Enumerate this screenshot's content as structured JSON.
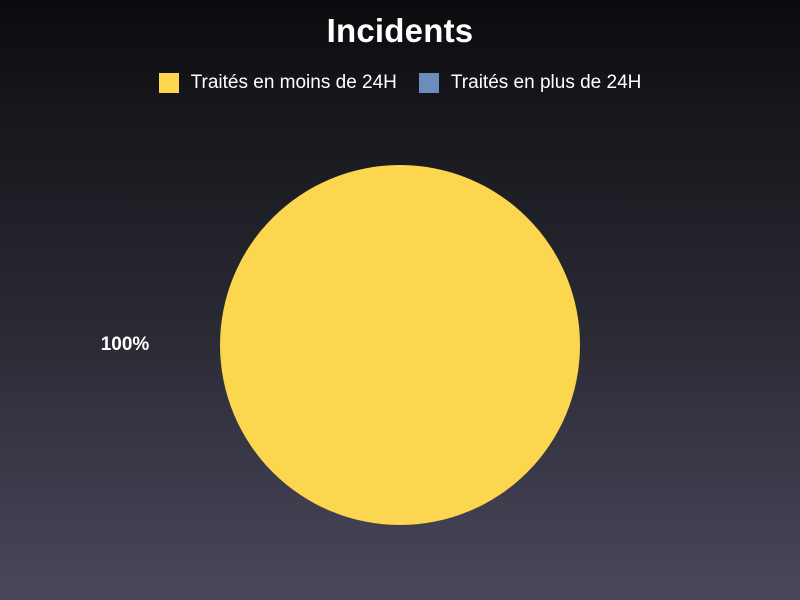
{
  "chart_data": {
    "type": "pie",
    "title": "Incidents",
    "legend_position": "top",
    "categories": [
      "Traités en moins de 24H",
      "Traités en plus de 24H"
    ],
    "values": [
      100,
      0
    ],
    "colors": [
      "#fdd64f",
      "#6b8cbf"
    ],
    "data_labels": [
      "100%",
      ""
    ]
  }
}
